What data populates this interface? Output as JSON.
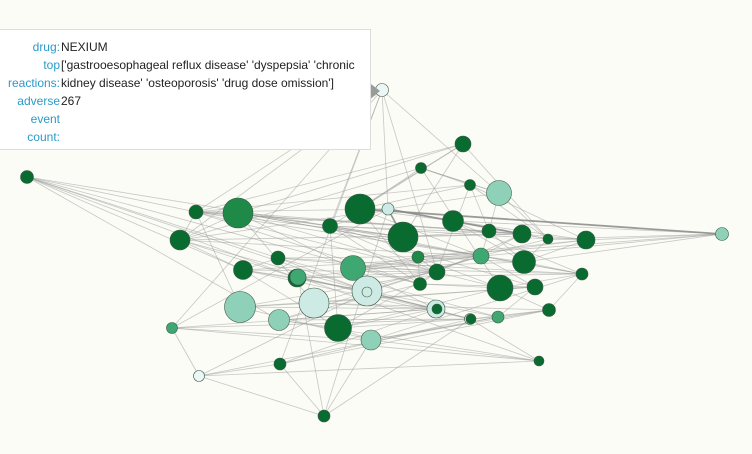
{
  "tooltip": {
    "drug_label": "drug:",
    "drug_value": "NEXIUM",
    "top_label_1": "top",
    "top_label_2": "reactions:",
    "top_value": "['gastrooesophageal reflux disease' 'dyspepsia' 'chronic kidney disease' 'osteoporosis' 'drug dose omission']",
    "adverse_label_1": "adverse",
    "adverse_label_2": "event",
    "adverse_label_3": "count:",
    "adverse_value": "267"
  },
  "colors": {
    "dark": "#0a6b30",
    "mid": "#1f8a48",
    "medium": "#3fa872",
    "light": "#8fd0b8",
    "pale": "#cdebe4",
    "faint": "#ecf6f6",
    "edge": "#9a9a9a"
  },
  "graph": {
    "nodes": [
      {
        "id": "n0",
        "c": "faint"
      },
      {
        "id": "n1",
        "c": "dark"
      },
      {
        "id": "n2",
        "c": "dark"
      },
      {
        "id": "n3",
        "c": "dark"
      },
      {
        "id": "n4",
        "c": "light"
      },
      {
        "id": "n5",
        "c": "dark"
      },
      {
        "id": "n6",
        "c": "pale"
      },
      {
        "id": "n7",
        "c": "dark"
      },
      {
        "id": "n8",
        "c": "dark"
      },
      {
        "id": "n9",
        "c": "dark"
      },
      {
        "id": "n10",
        "c": "dark"
      },
      {
        "id": "n11",
        "c": "dark"
      },
      {
        "id": "n12",
        "c": "dark"
      },
      {
        "id": "n13",
        "c": "light"
      },
      {
        "id": "n14",
        "c": "dark"
      },
      {
        "id": "n15",
        "c": "mid"
      },
      {
        "id": "n16",
        "c": "dark"
      },
      {
        "id": "n17",
        "c": "dark"
      },
      {
        "id": "n18",
        "c": "dark"
      },
      {
        "id": "n19",
        "c": "dark"
      },
      {
        "id": "n20",
        "c": "medium"
      },
      {
        "id": "n21",
        "c": "dark"
      },
      {
        "id": "n22",
        "c": "mid"
      },
      {
        "id": "n23",
        "c": "medium"
      },
      {
        "id": "n24",
        "c": "dark"
      },
      {
        "id": "n25",
        "c": "dark"
      },
      {
        "id": "n26",
        "c": "dark"
      },
      {
        "id": "n27",
        "c": "dark"
      },
      {
        "id": "n28",
        "c": "pale"
      },
      {
        "id": "n29",
        "c": "dark"
      },
      {
        "id": "n30",
        "c": "dark"
      },
      {
        "id": "n31",
        "c": "dark"
      },
      {
        "id": "n32",
        "c": "pale"
      },
      {
        "id": "n33",
        "c": "light"
      },
      {
        "id": "n34",
        "c": "pale"
      },
      {
        "id": "n35",
        "c": "light"
      },
      {
        "id": "n36",
        "c": "dark"
      },
      {
        "id": "n37",
        "c": "pale"
      },
      {
        "id": "n38",
        "c": "medium"
      },
      {
        "id": "n39",
        "c": "dark"
      },
      {
        "id": "n40",
        "c": "light"
      },
      {
        "id": "n41",
        "c": "medium"
      },
      {
        "id": "n42",
        "c": "dark"
      },
      {
        "id": "n43",
        "c": "faint"
      },
      {
        "id": "n44",
        "c": "dark"
      },
      {
        "id": "n45",
        "c": "dark"
      },
      {
        "id": "n46",
        "c": "dark"
      },
      {
        "id": "n47",
        "c": "medium"
      },
      {
        "id": "n48",
        "c": "pale"
      },
      {
        "id": "n49",
        "c": "dark"
      }
    ],
    "edges": [
      [
        "n0",
        "n6"
      ],
      [
        "n0",
        "n14"
      ],
      [
        "n0",
        "n17"
      ],
      [
        "n0",
        "n21"
      ],
      [
        "n0",
        "n4"
      ],
      [
        "n0",
        "n16"
      ],
      [
        "n1",
        "n5"
      ],
      [
        "n1",
        "n11"
      ],
      [
        "n1",
        "n8"
      ],
      [
        "n2",
        "n3"
      ],
      [
        "n2",
        "n5"
      ],
      [
        "n2",
        "n4"
      ],
      [
        "n2",
        "n17"
      ],
      [
        "n3",
        "n12"
      ],
      [
        "n3",
        "n11"
      ],
      [
        "n3",
        "n9"
      ],
      [
        "n3",
        "n16"
      ],
      [
        "n4",
        "n6"
      ],
      [
        "n4",
        "n9"
      ],
      [
        "n4",
        "n11"
      ],
      [
        "n4",
        "n2"
      ],
      [
        "n5",
        "n6"
      ],
      [
        "n5",
        "n13"
      ],
      [
        "n5",
        "n7"
      ],
      [
        "n5",
        "n3"
      ],
      [
        "n6",
        "n8"
      ],
      [
        "n6",
        "n7"
      ],
      [
        "n6",
        "n14"
      ],
      [
        "n6",
        "n17"
      ],
      [
        "n6",
        "n16"
      ],
      [
        "n6",
        "n10"
      ],
      [
        "n7",
        "n12"
      ],
      [
        "n7",
        "n19"
      ],
      [
        "n7",
        "n11"
      ],
      [
        "n7",
        "n13"
      ],
      [
        "n7",
        "n24"
      ],
      [
        "n8",
        "n9"
      ],
      [
        "n8",
        "n10"
      ],
      [
        "n8",
        "n14"
      ],
      [
        "n8",
        "n15"
      ],
      [
        "n8",
        "n16"
      ],
      [
        "n9",
        "n10"
      ],
      [
        "n9",
        "n16"
      ],
      [
        "n9",
        "n19"
      ],
      [
        "n9",
        "n20"
      ],
      [
        "n10",
        "n21"
      ],
      [
        "n10",
        "n11"
      ],
      [
        "n10",
        "n12"
      ],
      [
        "n10",
        "n14"
      ],
      [
        "n10",
        "n15"
      ],
      [
        "n10",
        "n16"
      ],
      [
        "n10",
        "n17"
      ],
      [
        "n10",
        "n20"
      ],
      [
        "n11",
        "n12"
      ],
      [
        "n11",
        "n13"
      ],
      [
        "n11",
        "n19"
      ],
      [
        "n11",
        "n20"
      ],
      [
        "n11",
        "n14"
      ],
      [
        "n12",
        "n19"
      ],
      [
        "n12",
        "n13"
      ],
      [
        "n12",
        "n23"
      ],
      [
        "n12",
        "n22"
      ],
      [
        "n13",
        "n19"
      ],
      [
        "n13",
        "n22"
      ],
      [
        "n13",
        "n23"
      ],
      [
        "n14",
        "n15"
      ],
      [
        "n14",
        "n20"
      ],
      [
        "n14",
        "n21"
      ],
      [
        "n14",
        "n18"
      ],
      [
        "n15",
        "n16"
      ],
      [
        "n15",
        "n17"
      ],
      [
        "n15",
        "n20"
      ],
      [
        "n15",
        "n21"
      ],
      [
        "n15",
        "n24"
      ],
      [
        "n16",
        "n17"
      ],
      [
        "n16",
        "n20"
      ],
      [
        "n16",
        "n18"
      ],
      [
        "n17",
        "n20"
      ],
      [
        "n17",
        "n25"
      ],
      [
        "n17",
        "n26"
      ],
      [
        "n17",
        "n28"
      ],
      [
        "n18",
        "n26"
      ],
      [
        "n18",
        "n27"
      ],
      [
        "n18",
        "n28"
      ],
      [
        "n18",
        "n25"
      ],
      [
        "n19",
        "n22"
      ],
      [
        "n19",
        "n23"
      ],
      [
        "n19",
        "n24"
      ],
      [
        "n19",
        "n20"
      ],
      [
        "n20",
        "n25"
      ],
      [
        "n20",
        "n26"
      ],
      [
        "n20",
        "n28"
      ],
      [
        "n20",
        "n27"
      ],
      [
        "n20",
        "n24"
      ],
      [
        "n21",
        "n25"
      ],
      [
        "n21",
        "n26"
      ],
      [
        "n21",
        "n27"
      ],
      [
        "n21",
        "n22"
      ],
      [
        "n21",
        "n29"
      ],
      [
        "n22",
        "n23"
      ],
      [
        "n22",
        "n29"
      ],
      [
        "n22",
        "n30"
      ],
      [
        "n23",
        "n29"
      ],
      [
        "n23",
        "n24"
      ],
      [
        "n24",
        "n27"
      ],
      [
        "n24",
        "n25"
      ],
      [
        "n24",
        "n30"
      ],
      [
        "n25",
        "n28"
      ],
      [
        "n25",
        "n26"
      ],
      [
        "n26",
        "n27"
      ],
      [
        "n26",
        "n28"
      ],
      [
        "n27",
        "n28"
      ],
      [
        "n29",
        "n30"
      ],
      [
        "n29",
        "n31"
      ],
      [
        "n30",
        "n31"
      ],
      [
        "n31",
        "n32"
      ],
      [
        "n31",
        "n33"
      ],
      [
        "n32",
        "n33"
      ],
      [
        "n32",
        "n34"
      ],
      [
        "n33",
        "n34"
      ],
      [
        "n34",
        "n35"
      ],
      [
        "n34",
        "n36"
      ],
      [
        "n35",
        "n36"
      ],
      [
        "n35",
        "n37"
      ],
      [
        "n36",
        "n37"
      ],
      [
        "n37",
        "n38"
      ],
      [
        "n37",
        "n39"
      ],
      [
        "n38",
        "n39"
      ],
      [
        "n38",
        "n40"
      ],
      [
        "n39",
        "n40"
      ],
      [
        "n40",
        "n41"
      ],
      [
        "n40",
        "n42"
      ],
      [
        "n41",
        "n42"
      ],
      [
        "n41",
        "n43"
      ],
      [
        "n42",
        "n43"
      ],
      [
        "n43",
        "n44"
      ],
      [
        "n43",
        "n45"
      ],
      [
        "n44",
        "n45"
      ],
      [
        "n44",
        "n46"
      ],
      [
        "n45",
        "n46"
      ],
      [
        "n46",
        "n47"
      ],
      [
        "n46",
        "n48"
      ],
      [
        "n47",
        "n48"
      ],
      [
        "n47",
        "n49"
      ],
      [
        "n48",
        "n49"
      ],
      [
        "n14",
        "n29"
      ],
      [
        "n14",
        "n31"
      ],
      [
        "n14",
        "n36"
      ],
      [
        "n15",
        "n32"
      ],
      [
        "n15",
        "n34"
      ],
      [
        "n16",
        "n29"
      ],
      [
        "n16",
        "n30"
      ],
      [
        "n16",
        "n33"
      ],
      [
        "n18",
        "n29"
      ],
      [
        "n18",
        "n35"
      ],
      [
        "n20",
        "n31"
      ],
      [
        "n20",
        "n32"
      ],
      [
        "n20",
        "n35"
      ],
      [
        "n21",
        "n33"
      ],
      [
        "n21",
        "n36"
      ],
      [
        "n24",
        "n39"
      ],
      [
        "n24",
        "n40"
      ],
      [
        "n26",
        "n36"
      ],
      [
        "n26",
        "n37"
      ],
      [
        "n27",
        "n38"
      ],
      [
        "n28",
        "n37"
      ],
      [
        "n28",
        "n38"
      ],
      [
        "n29",
        "n35"
      ],
      [
        "n30",
        "n36"
      ],
      [
        "n30",
        "n39"
      ],
      [
        "n31",
        "n38"
      ],
      [
        "n32",
        "n39"
      ],
      [
        "n33",
        "n40"
      ],
      [
        "n34",
        "n41"
      ],
      [
        "n35",
        "n42"
      ],
      [
        "n36",
        "n40"
      ],
      [
        "n37",
        "n42"
      ],
      [
        "n38",
        "n43"
      ],
      [
        "n39",
        "n44"
      ],
      [
        "n40",
        "n45"
      ],
      [
        "n41",
        "n46"
      ],
      [
        "n42",
        "n47"
      ],
      [
        "n43",
        "n48"
      ],
      [
        "n44",
        "n49"
      ],
      [
        "n45",
        "n47"
      ],
      [
        "n0",
        "n44"
      ],
      [
        "n0",
        "n41"
      ],
      [
        "n6",
        "n41"
      ],
      [
        "n6",
        "n45"
      ],
      [
        "n1",
        "n15"
      ],
      [
        "n1",
        "n16"
      ],
      [
        "n1",
        "n14"
      ],
      [
        "n5",
        "n20"
      ],
      [
        "n5",
        "n29"
      ],
      [
        "n3",
        "n21"
      ],
      [
        "n2",
        "n30"
      ]
    ],
    "heavy_edges": [
      [
        "n6",
        "n10"
      ],
      [
        "n6",
        "n8"
      ],
      [
        "n5",
        "n13"
      ]
    ]
  }
}
